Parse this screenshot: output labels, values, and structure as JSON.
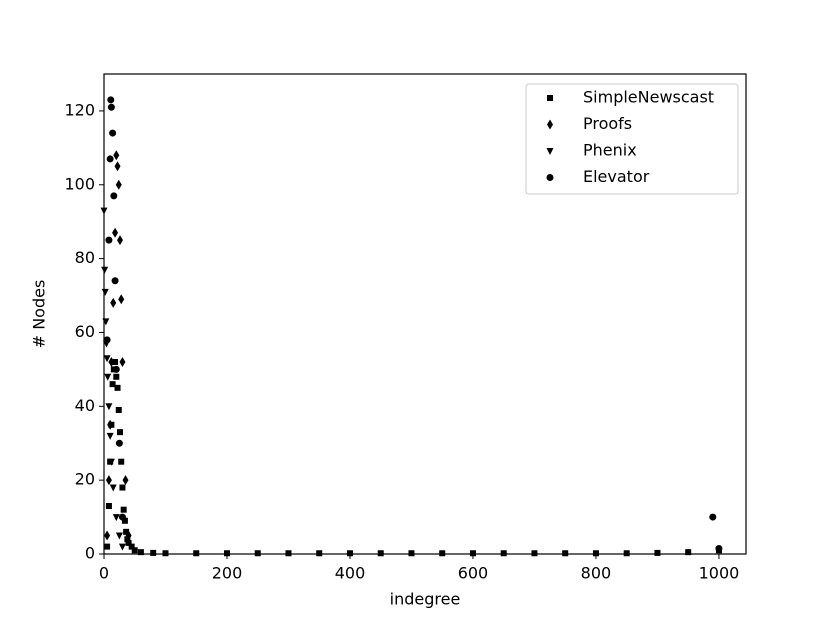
{
  "chart_data": {
    "type": "scatter",
    "x_label": "indegree",
    "y_label": "# Nodes",
    "xlim": [
      0,
      1044
    ],
    "ylim": [
      0,
      130
    ],
    "xticks": [
      0,
      200,
      400,
      600,
      800,
      1000
    ],
    "yticks": [
      0,
      20,
      40,
      60,
      80,
      100,
      120
    ],
    "legend": "upper right",
    "series": [
      {
        "name": "SimpleNewscast",
        "color": "#000000",
        "marker": "square",
        "x": [
          5,
          8,
          10,
          12,
          14,
          16,
          18,
          20,
          22,
          24,
          26,
          28,
          30,
          32,
          34,
          36,
          38,
          40,
          45,
          50,
          60,
          80,
          100,
          150,
          200,
          250,
          300,
          350,
          400,
          450,
          500,
          550,
          600,
          650,
          700,
          750,
          800,
          850,
          900,
          950,
          1000
        ],
        "values": [
          2,
          13,
          25,
          35,
          46,
          50,
          52,
          48,
          45,
          39,
          33,
          25,
          18,
          12,
          9,
          6,
          4,
          3,
          2,
          1,
          0.5,
          0.3,
          0.2,
          0.2,
          0.2,
          0.2,
          0.2,
          0.2,
          0.2,
          0.2,
          0.2,
          0.2,
          0.2,
          0.2,
          0.2,
          0.2,
          0.2,
          0.2,
          0.3,
          0.5,
          1
        ]
      },
      {
        "name": "Proofs",
        "color": "#000000",
        "marker": "diamond",
        "x": [
          5,
          8,
          10,
          12,
          15,
          18,
          20,
          22,
          24,
          26,
          28,
          30,
          35,
          40
        ],
        "values": [
          5,
          20,
          35,
          52,
          68,
          87,
          108,
          105,
          100,
          85,
          69,
          52,
          20,
          5
        ]
      },
      {
        "name": "Phenix",
        "color": "#000000",
        "marker": "triangle",
        "x": [
          0,
          1,
          2,
          3,
          4,
          5,
          6,
          8,
          10,
          12,
          15,
          20,
          25,
          30
        ],
        "values": [
          93,
          77,
          71,
          63,
          57,
          53,
          48,
          40,
          32,
          25,
          18,
          10,
          5,
          2
        ]
      },
      {
        "name": "Elevator",
        "color": "#000000",
        "marker": "circle",
        "x": [
          5,
          8,
          10,
          11,
          12,
          14,
          16,
          18,
          20,
          25,
          30,
          990,
          1000
        ],
        "values": [
          58,
          85,
          107,
          123,
          121,
          114,
          97,
          74,
          50,
          30,
          10,
          10,
          1.5
        ]
      }
    ]
  }
}
